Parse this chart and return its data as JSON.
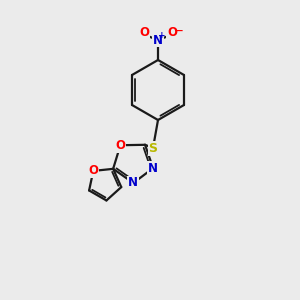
{
  "background_color": "#ebebeb",
  "bond_color": "#1a1a1a",
  "atom_colors": {
    "O": "#ff0000",
    "N": "#0000cc",
    "S": "#b8b800",
    "C": "#1a1a1a"
  },
  "figsize": [
    3.0,
    3.0
  ],
  "dpi": 100
}
